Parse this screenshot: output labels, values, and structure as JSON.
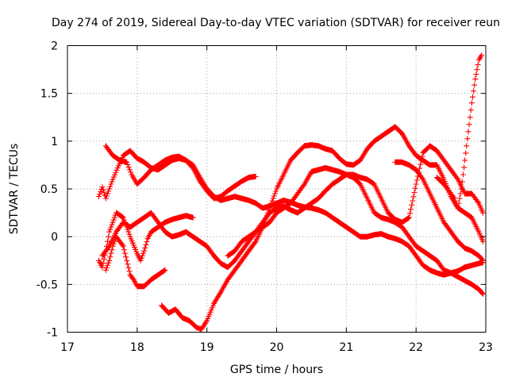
{
  "chart_data": {
    "type": "scatter",
    "title": "Day 274 of 2019, Sidereal Day-to-day VTEC variation (SDTVAR) for receiver reun",
    "xlabel": "GPS time / hours",
    "ylabel": "SDTVAR / TECUs",
    "xlim": [
      17,
      23
    ],
    "ylim": [
      -1,
      2
    ],
    "xticks": [
      17,
      18,
      19,
      20,
      21,
      22,
      23
    ],
    "yticks": [
      -1,
      -0.5,
      0,
      0.5,
      1,
      1.5,
      2
    ],
    "ytick_labels": [
      "-1",
      "-0.5",
      "0",
      "0.5",
      "1",
      "1.5",
      "2"
    ],
    "grid": true,
    "marker": "+",
    "color": "#ff0000",
    "series": [
      {
        "name": "s1",
        "x": [
          17.55,
          17.65,
          17.75,
          17.85,
          17.92,
          18.0,
          18.1,
          18.2,
          18.3,
          18.4,
          18.5,
          18.6,
          18.7,
          18.8,
          18.9,
          19.0,
          19.1,
          19.2,
          19.3,
          19.4,
          19.5,
          19.6,
          19.7
        ],
        "y": [
          0.95,
          0.85,
          0.8,
          0.78,
          0.65,
          0.55,
          0.62,
          0.7,
          0.75,
          0.8,
          0.83,
          0.84,
          0.8,
          0.72,
          0.58,
          0.48,
          0.4,
          0.42,
          0.48,
          0.53,
          0.58,
          0.62,
          0.63
        ]
      },
      {
        "name": "s2",
        "x": [
          17.45,
          17.5,
          17.55,
          17.6,
          17.65,
          17.72,
          17.8,
          17.9,
          18.0,
          18.1,
          18.2,
          18.3,
          18.4,
          18.5,
          18.6,
          18.7,
          18.8,
          18.9,
          19.0,
          19.1,
          19.2,
          19.3,
          19.4,
          19.5,
          19.6,
          19.7,
          19.8,
          19.9,
          20.0,
          20.1,
          20.2,
          20.3,
          20.4,
          20.5,
          20.6,
          20.7,
          20.8,
          20.9,
          21.0,
          21.1,
          21.2,
          21.3,
          21.4,
          21.5,
          21.6,
          21.7,
          21.8,
          21.9,
          22.0,
          22.1,
          22.2,
          22.3,
          22.4,
          22.5,
          22.6,
          22.7,
          22.8,
          22.9,
          22.96
        ],
        "y": [
          0.42,
          0.52,
          0.4,
          0.5,
          0.6,
          0.72,
          0.85,
          0.9,
          0.82,
          0.78,
          0.72,
          0.7,
          0.75,
          0.8,
          0.82,
          0.8,
          0.75,
          0.62,
          0.5,
          0.42,
          0.38,
          0.4,
          0.42,
          0.4,
          0.38,
          0.35,
          0.3,
          0.32,
          0.35,
          0.38,
          0.36,
          0.33,
          0.31,
          0.3,
          0.28,
          0.25,
          0.2,
          0.15,
          0.1,
          0.05,
          0.0,
          0.0,
          0.02,
          0.03,
          0.0,
          -0.02,
          -0.05,
          -0.1,
          -0.2,
          -0.3,
          -0.35,
          -0.38,
          -0.4,
          -0.38,
          -0.36,
          -0.32,
          -0.3,
          -0.28,
          -0.27
        ]
      },
      {
        "name": "s3",
        "x": [
          17.5,
          17.6,
          17.7,
          17.8,
          17.9,
          18.0,
          18.1,
          18.2,
          18.3,
          18.4,
          18.5,
          18.6,
          18.7,
          18.8,
          18.9,
          19.0,
          19.1,
          19.2,
          19.3,
          19.4,
          19.5,
          19.6,
          19.7,
          19.8,
          19.9,
          20.0,
          20.1,
          20.2,
          20.3,
          20.4,
          20.5,
          20.6,
          20.7,
          20.8,
          20.9,
          21.0,
          21.1,
          21.2,
          21.3,
          21.4,
          21.5,
          21.6,
          21.7,
          21.8,
          21.9,
          22.0,
          22.1,
          22.2,
          22.3,
          22.4,
          22.5,
          22.6,
          22.7,
          22.8,
          22.9,
          22.96
        ],
        "y": [
          -0.2,
          -0.1,
          0.05,
          0.15,
          0.1,
          0.15,
          0.2,
          0.25,
          0.15,
          0.05,
          0.0,
          0.02,
          0.05,
          0.0,
          -0.05,
          -0.1,
          -0.2,
          -0.28,
          -0.32,
          -0.25,
          -0.15,
          -0.05,
          0.05,
          0.15,
          0.25,
          0.3,
          0.32,
          0.28,
          0.25,
          0.3,
          0.35,
          0.4,
          0.48,
          0.55,
          0.6,
          0.65,
          0.62,
          0.55,
          0.4,
          0.25,
          0.2,
          0.18,
          0.15,
          0.1,
          0.0,
          -0.1,
          -0.15,
          -0.2,
          -0.25,
          -0.35,
          -0.38,
          -0.42,
          -0.46,
          -0.5,
          -0.55,
          -0.6
        ]
      },
      {
        "name": "s4",
        "x": [
          17.45,
          17.5,
          17.55,
          17.6,
          17.7,
          17.8,
          17.9,
          18.0,
          18.05,
          18.1,
          18.15,
          18.2,
          18.3,
          18.4,
          18.5,
          18.6,
          18.7,
          18.8
        ],
        "y": [
          -0.25,
          -0.32,
          -0.15,
          0.05,
          0.25,
          0.2,
          0.0,
          -0.18,
          -0.25,
          -0.15,
          -0.02,
          0.05,
          0.1,
          0.15,
          0.18,
          0.2,
          0.22,
          0.2
        ]
      },
      {
        "name": "s5",
        "x": [
          17.55,
          17.6,
          17.65,
          17.7,
          17.8,
          17.85,
          17.9,
          17.95,
          18.0,
          18.1,
          18.2,
          18.3,
          18.4
        ],
        "y": [
          -0.35,
          -0.25,
          -0.1,
          0.0,
          -0.1,
          -0.25,
          -0.4,
          -0.45,
          -0.52,
          -0.52,
          -0.45,
          -0.4,
          -0.35
        ]
      },
      {
        "name": "s6",
        "x": [
          18.35,
          18.45,
          18.55,
          18.65,
          18.75,
          18.85,
          18.92,
          19.0,
          19.1,
          19.2,
          19.3,
          19.4,
          19.5,
          19.6,
          19.7,
          19.8,
          19.9,
          20.0,
          20.1,
          20.2,
          20.3,
          20.4,
          20.5,
          20.6,
          20.7,
          20.8,
          20.9,
          21.0,
          21.1,
          21.2,
          21.3,
          21.4,
          21.5,
          21.6,
          21.7,
          21.8,
          21.9,
          22.0,
          22.1,
          22.2,
          22.3,
          22.4,
          22.5,
          22.6,
          22.7,
          22.8,
          22.9,
          22.96
        ],
        "y": [
          -0.72,
          -0.8,
          -0.76,
          -0.85,
          -0.88,
          -0.95,
          -0.97,
          -0.88,
          -0.7,
          -0.58,
          -0.45,
          -0.35,
          -0.25,
          -0.15,
          -0.05,
          0.1,
          0.3,
          0.5,
          0.65,
          0.8,
          0.88,
          0.95,
          0.96,
          0.95,
          0.92,
          0.9,
          0.82,
          0.76,
          0.75,
          0.8,
          0.92,
          1.0,
          1.05,
          1.1,
          1.15,
          1.08,
          0.95,
          0.85,
          0.8,
          0.75,
          0.75,
          0.6,
          0.42,
          0.3,
          0.25,
          0.2,
          0.05,
          -0.05
        ]
      },
      {
        "name": "s7",
        "x": [
          19.3,
          19.4,
          19.5,
          19.6,
          19.7,
          19.8,
          19.9,
          20.0,
          20.1,
          20.2,
          20.3,
          20.4,
          20.5,
          20.6,
          20.7,
          20.8,
          20.9,
          21.0,
          21.1,
          21.2,
          21.3,
          21.4,
          21.5,
          21.6,
          21.7,
          21.8,
          21.9,
          22.0,
          22.1,
          22.2,
          22.3,
          22.4,
          22.5,
          22.6,
          22.7,
          22.8,
          22.9,
          22.96
        ],
        "y": [
          -0.2,
          -0.15,
          -0.05,
          0.0,
          0.05,
          0.1,
          0.15,
          0.25,
          0.3,
          0.35,
          0.45,
          0.55,
          0.68,
          0.7,
          0.72,
          0.7,
          0.68,
          0.65,
          0.65,
          0.62,
          0.6,
          0.55,
          0.4,
          0.25,
          0.18,
          0.15,
          0.2,
          0.55,
          0.88,
          0.95,
          0.9,
          0.8,
          0.7,
          0.6,
          0.45,
          0.45,
          0.35,
          0.25
        ]
      },
      {
        "name": "s8",
        "x": [
          21.7,
          21.8,
          21.9,
          22.0,
          22.1,
          22.2,
          22.3,
          22.4,
          22.5,
          22.6,
          22.7,
          22.8,
          22.9,
          22.96
        ],
        "y": [
          0.78,
          0.78,
          0.75,
          0.7,
          0.6,
          0.45,
          0.3,
          0.15,
          0.05,
          -0.05,
          -0.12,
          -0.15,
          -0.2,
          -0.25
        ]
      },
      {
        "name": "s9",
        "x": [
          22.3,
          22.4,
          22.5,
          22.55,
          22.6,
          22.65,
          22.7,
          22.75,
          22.8,
          22.85,
          22.9,
          22.94
        ],
        "y": [
          0.62,
          0.55,
          0.45,
          0.4,
          0.3,
          0.5,
          0.8,
          1.1,
          1.4,
          1.65,
          1.85,
          1.9
        ]
      }
    ]
  }
}
